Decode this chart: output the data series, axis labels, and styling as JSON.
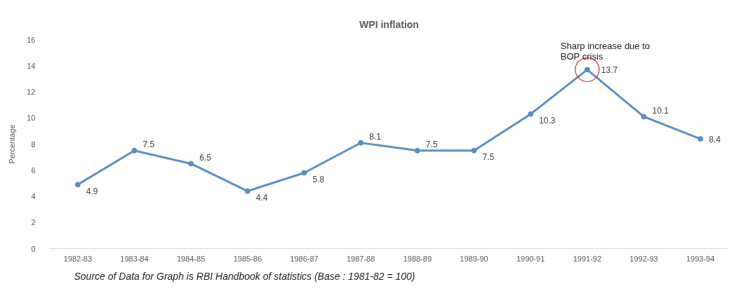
{
  "chart_data": {
    "type": "line",
    "title": "WPI inflation",
    "ylabel": "Percentage",
    "categories": [
      "1982-83",
      "1983-84",
      "1984-85",
      "1985-86",
      "1986-87",
      "1987-88",
      "1988-89",
      "1989-90",
      "1990-91",
      "1991-92",
      "1992-93",
      "1993-94"
    ],
    "values": [
      4.9,
      7.5,
      6.5,
      4.4,
      5.8,
      8.1,
      7.5,
      7.5,
      10.3,
      13.7,
      10.1,
      8.4
    ],
    "color": "#5b8fc4",
    "marker": "circle",
    "line_style": "solid",
    "data_labels": true,
    "ylim": [
      0,
      16
    ],
    "yticks": [
      0,
      2,
      4,
      6,
      8,
      10,
      12,
      14,
      16
    ],
    "annotations": [
      {
        "text": "Sharp increase due to BOP crisis",
        "x": "1991-92",
        "y": 13.7
      },
      "Source of Data for Graph is RBI Handbook of statistics (Base : 1981-82 = 100)"
    ]
  }
}
